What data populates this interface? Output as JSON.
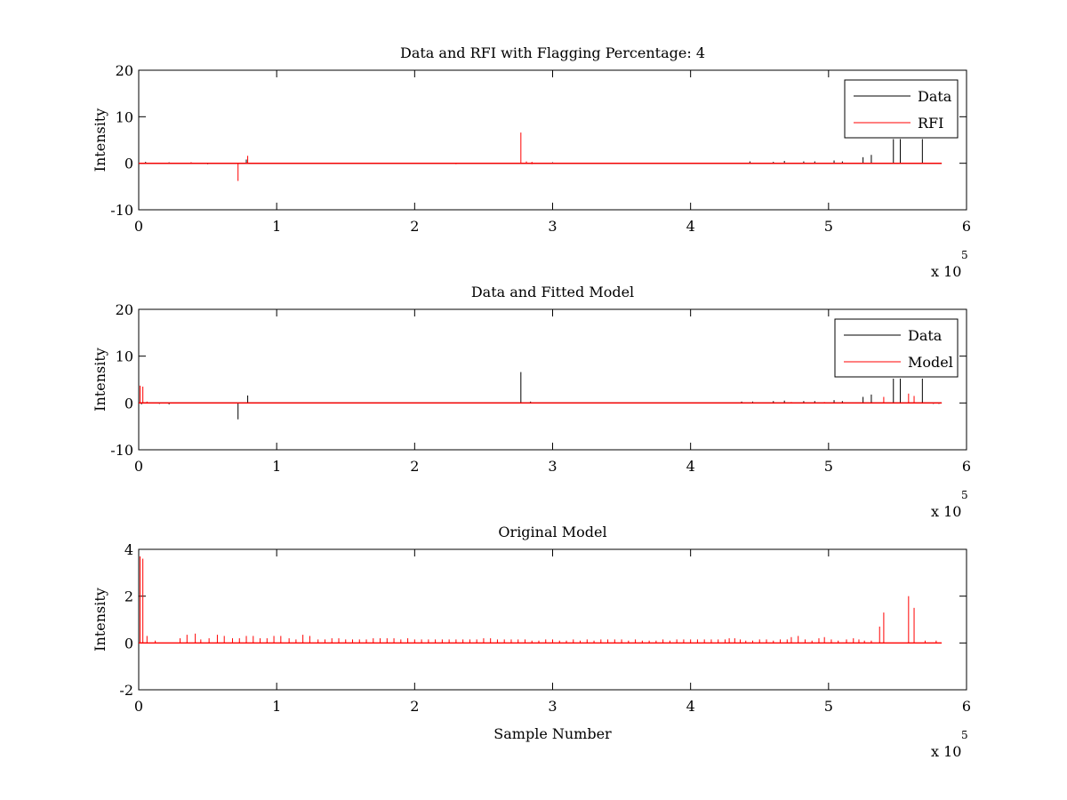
{
  "chart_data": [
    {
      "type": "line",
      "title": "Data and RFI with Flagging Percentage: 4",
      "xlabel": "",
      "ylabel": "Intensity",
      "xlim": [
        0,
        6
      ],
      "ylim": [
        -10,
        20
      ],
      "xticks": [
        0,
        1,
        2,
        3,
        4,
        5,
        6
      ],
      "yticks": [
        -10,
        0,
        10,
        20
      ],
      "x_multiplier_label": "x 10",
      "x_multiplier_exponent": "5",
      "legend": {
        "position": "top-right",
        "entries": [
          "Data",
          "RFI"
        ]
      },
      "series": [
        {
          "name": "Data",
          "color": "#000000",
          "baseline": 0,
          "spikes": [
            [
              0.05,
              0.3
            ],
            [
              0.22,
              0.2
            ],
            [
              0.38,
              0.2
            ],
            [
              0.5,
              -0.2
            ],
            [
              0.78,
              0.8
            ],
            [
              1.5,
              0.1
            ],
            [
              2.2,
              0.1
            ],
            [
              3.0,
              0.2
            ],
            [
              3.8,
              0.1
            ],
            [
              4.43,
              0.4
            ],
            [
              4.6,
              0.3
            ],
            [
              4.68,
              0.5
            ],
            [
              4.82,
              0.4
            ],
            [
              4.9,
              0.4
            ],
            [
              5.04,
              0.6
            ],
            [
              5.1,
              0.4
            ],
            [
              5.25,
              1.3
            ],
            [
              5.31,
              1.8
            ],
            [
              5.47,
              5.2
            ],
            [
              5.52,
              5.2
            ],
            [
              5.68,
              5.2
            ],
            [
              5.8,
              -0.1
            ]
          ]
        },
        {
          "name": "RFI",
          "color": "#ff0000",
          "baseline": 0,
          "spikes": [
            [
              0.72,
              -3.8
            ],
            [
              0.79,
              1.6
            ],
            [
              2.77,
              6.6
            ],
            [
              2.81,
              0.4
            ],
            [
              2.85,
              0.3
            ],
            [
              0.38,
              0.2
            ],
            [
              1.0,
              0.1
            ],
            [
              2.3,
              -0.2
            ],
            [
              2.85,
              -0.2
            ],
            [
              3.55,
              -0.1
            ],
            [
              4.6,
              -0.1
            ]
          ]
        }
      ]
    },
    {
      "type": "line",
      "title": "Data and Fitted Model",
      "xlabel": "",
      "ylabel": "Intensity",
      "xlim": [
        0,
        6
      ],
      "ylim": [
        -10,
        20
      ],
      "xticks": [
        0,
        1,
        2,
        3,
        4,
        5,
        6
      ],
      "yticks": [
        -10,
        0,
        10,
        20
      ],
      "x_multiplier_label": "x 10",
      "x_multiplier_exponent": "5",
      "legend": {
        "position": "top-right",
        "entries": [
          "Data",
          "Model"
        ]
      },
      "series": [
        {
          "name": "Data",
          "color": "#000000",
          "baseline": 0,
          "spikes": [
            [
              0.02,
              -0.3
            ],
            [
              0.15,
              -0.2
            ],
            [
              0.22,
              -0.3
            ],
            [
              0.72,
              -3.5
            ],
            [
              0.79,
              1.6
            ],
            [
              2.77,
              6.6
            ],
            [
              2.84,
              0.3
            ],
            [
              4.37,
              0.3
            ],
            [
              4.45,
              0.3
            ],
            [
              4.6,
              0.4
            ],
            [
              4.68,
              0.5
            ],
            [
              4.82,
              0.4
            ],
            [
              4.9,
              0.4
            ],
            [
              5.04,
              0.6
            ],
            [
              5.1,
              0.4
            ],
            [
              5.25,
              1.3
            ],
            [
              5.31,
              1.8
            ],
            [
              5.47,
              5.2
            ],
            [
              5.52,
              5.2
            ],
            [
              5.68,
              5.2
            ],
            [
              5.76,
              -0.2
            ],
            [
              5.8,
              -0.2
            ]
          ]
        },
        {
          "name": "Model",
          "color": "#ff0000",
          "baseline": 0,
          "spikes": [
            [
              0.01,
              3.7
            ],
            [
              0.03,
              3.5
            ],
            [
              0.06,
              0.3
            ],
            [
              0.1,
              0.1
            ],
            [
              0.25,
              0.1
            ],
            [
              0.4,
              0.1
            ],
            [
              0.6,
              0.1
            ],
            [
              0.8,
              0.1
            ],
            [
              1.0,
              0.1
            ],
            [
              1.2,
              0.1
            ],
            [
              2.5,
              0.1
            ],
            [
              4.2,
              0.1
            ],
            [
              4.4,
              0.1
            ],
            [
              4.73,
              0.2
            ],
            [
              4.97,
              0.2
            ],
            [
              5.4,
              1.3
            ],
            [
              5.58,
              2.0
            ],
            [
              5.62,
              1.5
            ]
          ]
        }
      ]
    },
    {
      "type": "line",
      "title": "Original Model",
      "xlabel": "Sample Number",
      "ylabel": "Intensity",
      "xlim": [
        0,
        6
      ],
      "ylim": [
        -2,
        4
      ],
      "xticks": [
        0,
        1,
        2,
        3,
        4,
        5,
        6
      ],
      "yticks": [
        -2,
        0,
        2,
        4
      ],
      "x_multiplier_label": "x 10",
      "x_multiplier_exponent": "5",
      "legend": null,
      "series": [
        {
          "name": "Original Model",
          "color": "#ff0000",
          "baseline": 0,
          "spikes": [
            [
              0.01,
              3.7
            ],
            [
              0.03,
              3.6
            ],
            [
              0.06,
              0.3
            ],
            [
              0.12,
              0.1
            ],
            [
              0.3,
              0.2
            ],
            [
              0.35,
              0.35
            ],
            [
              0.41,
              0.4
            ],
            [
              0.45,
              0.15
            ],
            [
              0.51,
              0.2
            ],
            [
              0.57,
              0.35
            ],
            [
              0.62,
              0.3
            ],
            [
              0.68,
              0.2
            ],
            [
              0.73,
              0.2
            ],
            [
              0.78,
              0.3
            ],
            [
              0.83,
              0.3
            ],
            [
              0.88,
              0.2
            ],
            [
              0.93,
              0.2
            ],
            [
              0.98,
              0.3
            ],
            [
              1.03,
              0.3
            ],
            [
              1.09,
              0.2
            ],
            [
              1.14,
              0.15
            ],
            [
              1.19,
              0.35
            ],
            [
              1.24,
              0.3
            ],
            [
              1.3,
              0.15
            ],
            [
              1.35,
              0.15
            ],
            [
              1.4,
              0.2
            ],
            [
              1.45,
              0.2
            ],
            [
              1.5,
              0.15
            ],
            [
              1.55,
              0.15
            ],
            [
              1.6,
              0.15
            ],
            [
              1.65,
              0.15
            ],
            [
              1.7,
              0.2
            ],
            [
              1.75,
              0.2
            ],
            [
              1.8,
              0.2
            ],
            [
              1.85,
              0.2
            ],
            [
              1.9,
              0.15
            ],
            [
              1.95,
              0.2
            ],
            [
              2.0,
              0.15
            ],
            [
              2.05,
              0.15
            ],
            [
              2.1,
              0.15
            ],
            [
              2.15,
              0.15
            ],
            [
              2.2,
              0.15
            ],
            [
              2.25,
              0.15
            ],
            [
              2.3,
              0.15
            ],
            [
              2.35,
              0.15
            ],
            [
              2.4,
              0.15
            ],
            [
              2.45,
              0.15
            ],
            [
              2.5,
              0.2
            ],
            [
              2.55,
              0.2
            ],
            [
              2.6,
              0.15
            ],
            [
              2.65,
              0.15
            ],
            [
              2.7,
              0.15
            ],
            [
              2.75,
              0.15
            ],
            [
              2.8,
              0.15
            ],
            [
              2.85,
              0.1
            ],
            [
              2.9,
              0.1
            ],
            [
              2.95,
              0.15
            ],
            [
              3.0,
              0.15
            ],
            [
              3.05,
              0.1
            ],
            [
              3.1,
              0.1
            ],
            [
              3.15,
              0.15
            ],
            [
              3.2,
              0.1
            ],
            [
              3.25,
              0.15
            ],
            [
              3.3,
              0.1
            ],
            [
              3.35,
              0.15
            ],
            [
              3.4,
              0.15
            ],
            [
              3.45,
              0.15
            ],
            [
              3.5,
              0.15
            ],
            [
              3.55,
              0.1
            ],
            [
              3.6,
              0.15
            ],
            [
              3.65,
              0.1
            ],
            [
              3.7,
              0.1
            ],
            [
              3.75,
              0.1
            ],
            [
              3.8,
              0.15
            ],
            [
              3.85,
              0.1
            ],
            [
              3.9,
              0.15
            ],
            [
              3.95,
              0.15
            ],
            [
              4.0,
              0.15
            ],
            [
              4.05,
              0.15
            ],
            [
              4.1,
              0.15
            ],
            [
              4.15,
              0.15
            ],
            [
              4.2,
              0.15
            ],
            [
              4.25,
              0.15
            ],
            [
              4.28,
              0.2
            ],
            [
              4.32,
              0.2
            ],
            [
              4.36,
              0.15
            ],
            [
              4.4,
              0.1
            ],
            [
              4.45,
              0.1
            ],
            [
              4.5,
              0.15
            ],
            [
              4.55,
              0.15
            ],
            [
              4.6,
              0.1
            ],
            [
              4.65,
              0.15
            ],
            [
              4.7,
              0.15
            ],
            [
              4.73,
              0.25
            ],
            [
              4.78,
              0.3
            ],
            [
              4.83,
              0.15
            ],
            [
              4.88,
              0.1
            ],
            [
              4.93,
              0.2
            ],
            [
              4.97,
              0.25
            ],
            [
              5.02,
              0.15
            ],
            [
              5.07,
              0.1
            ],
            [
              5.13,
              0.15
            ],
            [
              5.18,
              0.2
            ],
            [
              5.22,
              0.15
            ],
            [
              5.26,
              0.1
            ],
            [
              5.31,
              0.1
            ],
            [
              5.37,
              0.7
            ],
            [
              5.4,
              1.3
            ],
            [
              5.58,
              2.0
            ],
            [
              5.62,
              1.5
            ],
            [
              5.7,
              0.1
            ],
            [
              5.78,
              0.1
            ]
          ]
        }
      ]
    }
  ]
}
